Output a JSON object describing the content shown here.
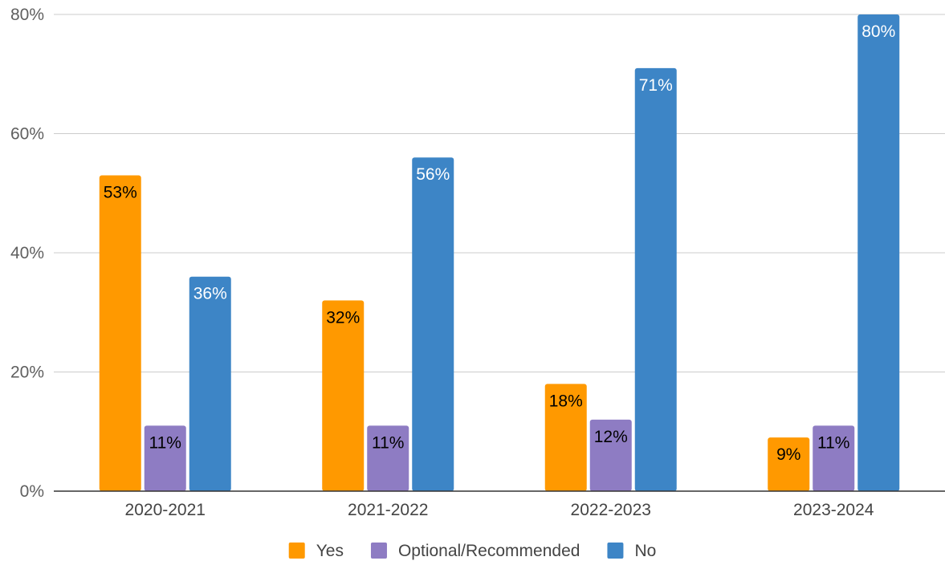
{
  "chart_data": {
    "type": "bar",
    "categories": [
      "2020-2021",
      "2021-2022",
      "2022-2023",
      "2023-2024"
    ],
    "series": [
      {
        "name": "Yes",
        "color": "#ff9900",
        "values": [
          53,
          32,
          18,
          9
        ],
        "labels": [
          "53%",
          "32%",
          "18%",
          "9%"
        ],
        "label_color": "#000000"
      },
      {
        "name": "Optional/Recommended",
        "color": "#8e7cc3",
        "values": [
          11,
          11,
          12,
          11
        ],
        "labels": [
          "11%",
          "11%",
          "12%",
          "11%"
        ],
        "label_color": "#000000"
      },
      {
        "name": "No",
        "color": "#3d85c6",
        "values": [
          36,
          56,
          71,
          80
        ],
        "labels": [
          "36%",
          "56%",
          "71%",
          "80%"
        ],
        "label_color": "#ffffff"
      }
    ],
    "ylim": [
      0,
      80
    ],
    "yticks": [
      0,
      20,
      40,
      60,
      80
    ],
    "ytick_labels": [
      "0%",
      "20%",
      "40%",
      "60%",
      "80%"
    ],
    "grid": true,
    "legend_position": "bottom",
    "title": "",
    "xlabel": "",
    "ylabel": ""
  }
}
